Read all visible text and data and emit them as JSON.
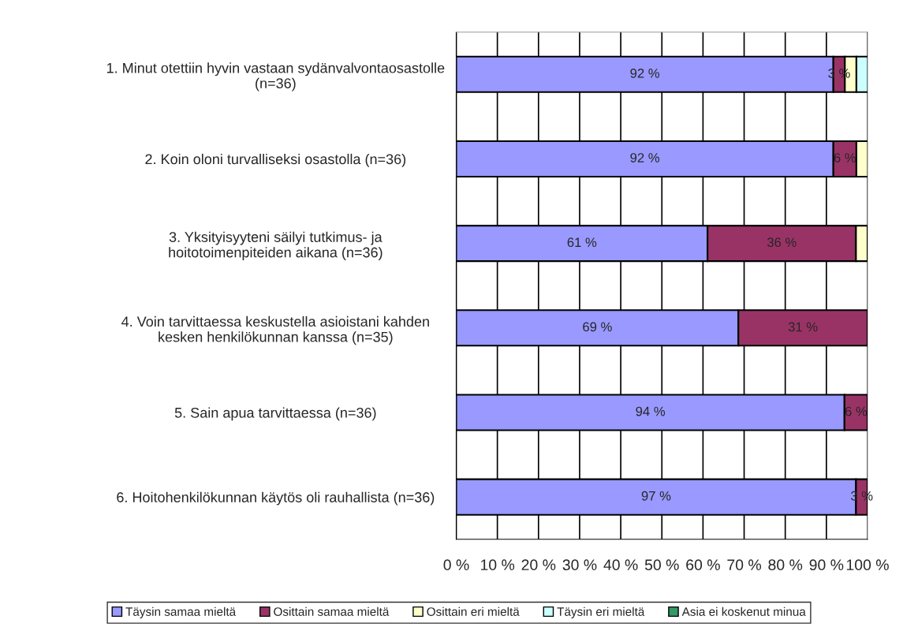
{
  "chart_data": {
    "type": "bar",
    "orientation": "horizontal",
    "stacked": true,
    "categories": [
      "1. Minut otettiin hyvin vastaan sydänvalvontaosastolle\n(n=36)",
      "2. Koin oloni turvalliseksi osastolla (n=36)",
      "3. Yksityisyyteni säilyi tutkimus- ja\nhoitotoimenpiteiden aikana (n=36)",
      "4. Voin tarvittaessa keskustella asioistani kahden\nkesken henkilökunnan kanssa (n=35)",
      "5. Sain apua tarvittaessa (n=36)",
      "6. Hoitohenkilökunnan käytös oli rauhallista (n=36)"
    ],
    "series": [
      {
        "name": "Täysin samaa mieltä",
        "color": "#9999ff",
        "values": [
          91.7,
          91.7,
          61.1,
          68.6,
          94.4,
          97.2
        ],
        "value_labels": [
          "92 %",
          "92 %",
          "61 %",
          "69 %",
          "94 %",
          "97 %"
        ]
      },
      {
        "name": "Osittain samaa mieltä",
        "color": "#993366",
        "values": [
          2.8,
          5.6,
          36.1,
          31.4,
          5.6,
          2.8
        ],
        "value_labels": [
          "3 %",
          "6 %",
          "36 %",
          "31 %",
          "6 %",
          "3 %"
        ]
      },
      {
        "name": "Osittain eri mieltä",
        "color": "#ffffcc",
        "values": [
          2.8,
          2.8,
          2.8,
          null,
          null,
          null
        ]
      },
      {
        "name": "Täysin eri mieltä",
        "color": "#ccffff",
        "values": [
          2.8,
          null,
          null,
          null,
          null,
          null
        ]
      },
      {
        "name": "Asia ei koskenut minua",
        "color": "#339966",
        "values": [
          null,
          null,
          null,
          null,
          null,
          null
        ]
      }
    ],
    "xlim": [
      0,
      100
    ],
    "xticks": [
      {
        "value": 0,
        "label": "0 %"
      },
      {
        "value": 10,
        "label": "10 %"
      },
      {
        "value": 20,
        "label": "20 %"
      },
      {
        "value": 30,
        "label": "30 %"
      },
      {
        "value": 40,
        "label": "40 %"
      },
      {
        "value": 50,
        "label": "50 %"
      },
      {
        "value": 60,
        "label": "60 %"
      },
      {
        "value": 70,
        "label": "70 %"
      },
      {
        "value": 80,
        "label": "80 %"
      },
      {
        "value": 90,
        "label": "90 %"
      },
      {
        "value": 100,
        "label": "100 %"
      }
    ],
    "grid": "x",
    "legend": "bottom"
  }
}
